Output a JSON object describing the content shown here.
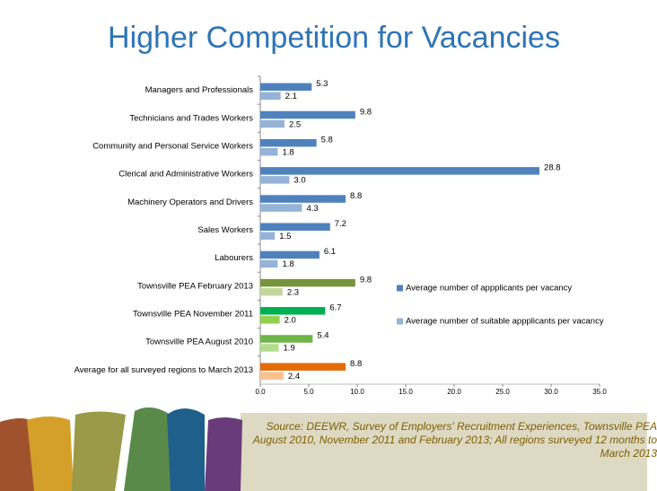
{
  "chart_data": {
    "type": "bar",
    "orientation": "horizontal",
    "title": "Higher Competition for Vacancies",
    "categories": [
      "Managers and Professionals",
      "Technicians and Trades Workers",
      "Community and Personal Service Workers",
      "Clerical and Administrative Workers",
      "Machinery Operators and Drivers",
      "Sales Workers",
      "Labourers",
      "Townsville PEA February 2013",
      "Townsville PEA November 2011",
      "Townsville PEA August 2010",
      "Average for all surveyed regions to March 2013"
    ],
    "series": [
      {
        "name": "Average number of appplicants per vacancy",
        "color": "#4f81bd",
        "point_colors": [
          "#4f81bd",
          "#4f81bd",
          "#4f81bd",
          "#4f81bd",
          "#4f81bd",
          "#4f81bd",
          "#4f81bd",
          "#77933c",
          "#00b050",
          "#6fb54a",
          "#e36c09"
        ],
        "values": [
          5.3,
          9.8,
          5.8,
          28.8,
          8.8,
          7.2,
          6.1,
          9.8,
          6.7,
          5.4,
          8.8
        ],
        "value_labels": [
          "5.3",
          "9.8",
          "5.8",
          "28.8",
          "8.8",
          "7.2",
          "6.1",
          "9.8",
          "6.7",
          "5.4",
          "8.8"
        ]
      },
      {
        "name": "Average number of suitable appplicants per vacancy",
        "color": "#95b3d7",
        "point_colors": [
          "#95b3d7",
          "#95b3d7",
          "#95b3d7",
          "#95b3d7",
          "#95b3d7",
          "#95b3d7",
          "#95b3d7",
          "#c3d69b",
          "#92d050",
          "#b3dd8e",
          "#fac090"
        ],
        "values": [
          2.1,
          2.5,
          1.8,
          3.0,
          4.3,
          1.5,
          1.8,
          2.3,
          2.0,
          1.9,
          2.4
        ],
        "value_labels": [
          "2.1",
          "2.5",
          "1.8",
          "3.0",
          "4.3",
          "1.5",
          "1.8",
          "2.3",
          "2.0",
          "1.9",
          "2.4"
        ]
      }
    ],
    "xlim": [
      0,
      35
    ],
    "xticks": [
      {
        "value": 0,
        "label": "0.0"
      },
      {
        "value": 5,
        "label": "5.0"
      },
      {
        "value": 10,
        "label": "10.0"
      },
      {
        "value": 15,
        "label": "15.0"
      },
      {
        "value": 20,
        "label": "20.0"
      },
      {
        "value": 25,
        "label": "25.0"
      },
      {
        "value": 30,
        "label": "30.0"
      },
      {
        "value": 35,
        "label": "35.0"
      }
    ],
    "grid": false,
    "legend": "right",
    "source": "Source:  DEEWR, Survey of Employers' Recruitment Experiences, Townsville PEA August 2010, November 2011 and February 2013; All regions surveyed 12 months to March 2013"
  }
}
